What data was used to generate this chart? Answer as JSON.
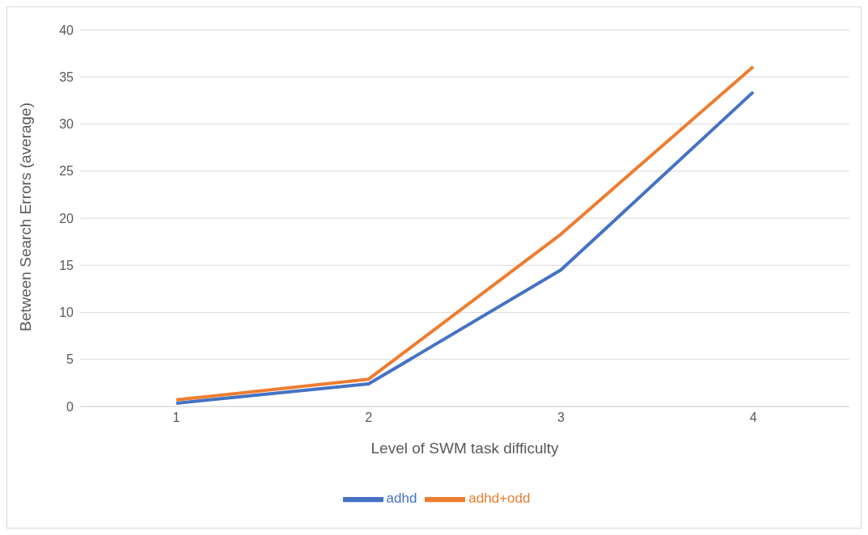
{
  "chart_data": {
    "type": "line",
    "xlabel": "Level of SWM task difficulty",
    "ylabel": "Between Search Errors (average)",
    "categories": [
      "1",
      "2",
      "3",
      "4"
    ],
    "series": [
      {
        "name": "adhd",
        "color": "#4472c4",
        "values": [
          0.35,
          2.4,
          14.5,
          33.4
        ]
      },
      {
        "name": "adhd+odd",
        "color": "#ed7d31",
        "values": [
          0.7,
          2.9,
          18.3,
          36.1
        ]
      }
    ],
    "ylim": [
      0,
      40
    ],
    "yticks": [
      0,
      5,
      10,
      15,
      20,
      25,
      30,
      35,
      40
    ],
    "grid": "y",
    "legend": "bottom",
    "marker": "none",
    "line_style": "solid"
  }
}
